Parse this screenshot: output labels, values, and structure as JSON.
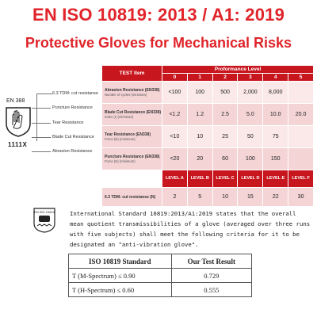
{
  "header": {
    "title": "EN ISO 10819: 2013 / A1: 2019",
    "subtitle": "Protective Gloves for Mechanical Risks"
  },
  "pictogram": {
    "standard": "EN 388",
    "code": "1111X",
    "legend": [
      "6.3 TDM: cut resistanse",
      "Puncture Resistance",
      "Tear Resistance",
      "Blade Cut Resistance",
      "Abrasion Resistance"
    ]
  },
  "performance_table": {
    "test_item_header": "TEST Item",
    "performance_header": "Proformance Level",
    "level_numbers": [
      "0",
      "1",
      "2",
      "3",
      "4",
      "5"
    ],
    "rows": [
      {
        "label": "Abrasion Resistance (EN338)",
        "sub": "Number of cycles (minimum)",
        "values": [
          "<100",
          "100",
          "500",
          "2,000",
          "8,000",
          ""
        ]
      },
      {
        "label": "Blade Cut Resistance (EN338)",
        "sub": "Index (I) (minimum)",
        "values": [
          "<1.2",
          "1.2",
          "2.5",
          "5.0",
          "10.0",
          "20.0"
        ]
      },
      {
        "label": "Tear Resistance (EN338)",
        "sub": "Force (N) (minimum)",
        "values": [
          "<10",
          "10",
          "25",
          "50",
          "75",
          ""
        ]
      },
      {
        "label": "Puncture Resistance (EN338)",
        "sub": "Force (N) (minimum)",
        "values": [
          "<20",
          "20",
          "60",
          "100",
          "150",
          ""
        ]
      }
    ],
    "letter_levels": [
      "LEVEL A",
      "LEVEL B",
      "LEVEL C",
      "LEVEL D",
      "LEVEL E",
      "LEVEL F"
    ],
    "tdm_row": {
      "label": "6.3 TDM: cut resistanse (N)",
      "values": [
        "2",
        "5",
        "10",
        "15",
        "22",
        "30"
      ]
    }
  },
  "standard_statement": {
    "icon_label": "EN ISO 10819",
    "text": "International Standard 10819:2013/A1:2019 states that the overall mean quotient transmissibilities of a glove (averaged over three runs with five subjects) shall meet the following criteria for it to be designated an \"anti-vibration glove\"."
  },
  "result_table": {
    "headers": [
      "ISO 10819 Standard",
      "Our Test Result"
    ],
    "rows": [
      {
        "standard": "T (M-Spectrum) ≤ 0.90",
        "result": "0.729"
      },
      {
        "standard": "T (H-Spectrum) ≤ 0.60",
        "result": "0.555"
      }
    ]
  },
  "colors": {
    "accent_red": "#c8161e",
    "title_red": "#e0242a",
    "light_pink": "#f4d4d5"
  }
}
